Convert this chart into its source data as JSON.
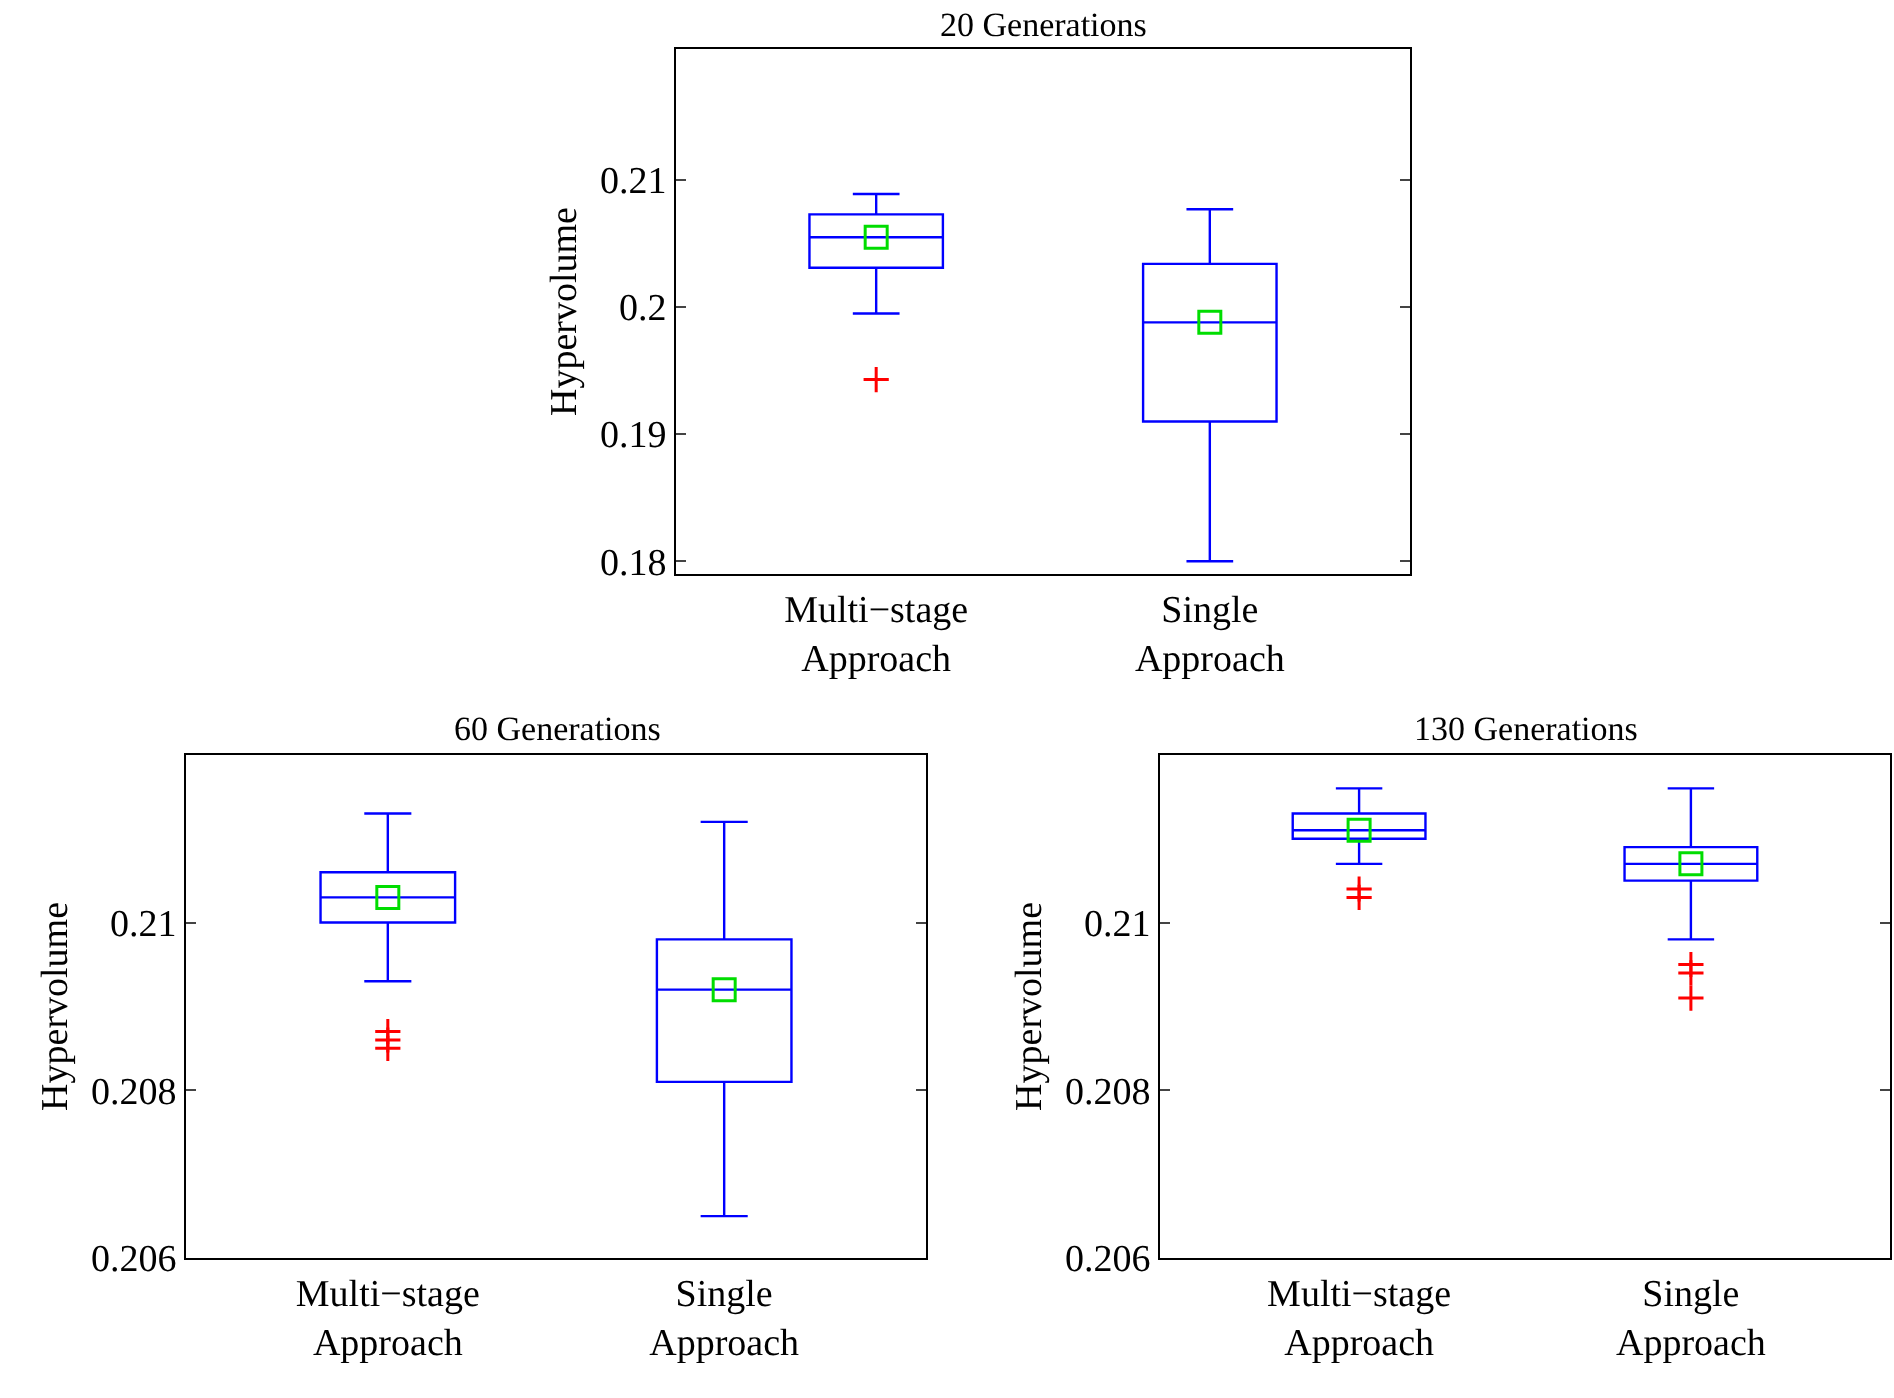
{
  "chart_data": [
    {
      "type": "box",
      "title": "20 Generations",
      "ylabel": "Hypervolume",
      "categories": [
        "Multi−stage\nApproach",
        "Single\nApproach"
      ],
      "boxes": [
        {
          "low": 0.1995,
          "q1": 0.2031,
          "median": 0.2055,
          "q3": 0.2073,
          "high": 0.2089,
          "mean": 0.2055,
          "outliers": [
            0.1943
          ]
        },
        {
          "low": 0.18,
          "q1": 0.191,
          "median": 0.1988,
          "q3": 0.2034,
          "high": 0.2077,
          "mean": 0.1988
        }
      ],
      "ylim": [
        0.179,
        0.2203
      ],
      "yticks": [
        0.18,
        0.19,
        {
          "value": 0.2,
          "label": "0.2"
        },
        0.21
      ]
    },
    {
      "type": "box",
      "title": "60 Generations",
      "ylabel": "Hypervolume",
      "categories": [
        "Multi−stage\nApproach",
        "Single\nApproach"
      ],
      "boxes": [
        {
          "low": 0.2093,
          "q1": 0.21,
          "median": 0.2103,
          "q3": 0.2106,
          "high": 0.2113,
          "mean": 0.2103,
          "outliers": [
            0.2087,
            0.2086,
            0.2085
          ]
        },
        {
          "low": 0.2065,
          "q1": 0.2081,
          "median": 0.2092,
          "q3": 0.2098,
          "high": 0.2112,
          "mean": 0.2092
        }
      ],
      "ylim": [
        0.206,
        0.212
      ],
      "yticks": [
        0.206,
        0.208,
        0.21
      ]
    },
    {
      "type": "box",
      "title": "130 Generations",
      "ylabel": "Hypervolume",
      "categories": [
        "Multi−stage\nApproach",
        "Single\nApproach"
      ],
      "boxes": [
        {
          "low": 0.2107,
          "q1": 0.211,
          "median": 0.2111,
          "q3": 0.2113,
          "high": 0.2116,
          "mean": 0.2111,
          "outliers": [
            0.2104,
            0.2103
          ]
        },
        {
          "low": 0.2098,
          "q1": 0.2105,
          "median": 0.2107,
          "q3": 0.2109,
          "high": 0.2116,
          "mean": 0.2107,
          "outliers": [
            0.2095,
            0.2094,
            0.2091
          ]
        }
      ],
      "ylim": [
        0.206,
        0.212
      ],
      "yticks": [
        0.206,
        0.208,
        0.21
      ]
    }
  ]
}
